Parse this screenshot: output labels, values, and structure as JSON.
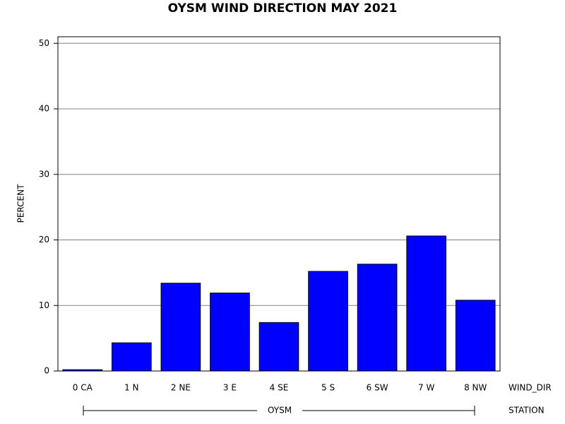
{
  "chart_data": {
    "type": "bar",
    "title": "OYSM WIND DIRECTION MAY 2021",
    "y_label": "PERCENT",
    "x_label": "WIND_DIR",
    "group_label": "STATION",
    "group": "OYSM",
    "categories": [
      "0 CA",
      "1 N",
      "2 NE",
      "3 E",
      "4 SE",
      "5 S",
      "6 SW",
      "7 W",
      "8 NW"
    ],
    "values": [
      0.2,
      4.3,
      13.4,
      11.9,
      7.4,
      15.2,
      16.3,
      20.6,
      10.8
    ],
    "color": "#0000ff",
    "ylim": [
      0,
      51
    ],
    "yticks": [
      0,
      10,
      20,
      30,
      40,
      50
    ],
    "grid": true
  }
}
